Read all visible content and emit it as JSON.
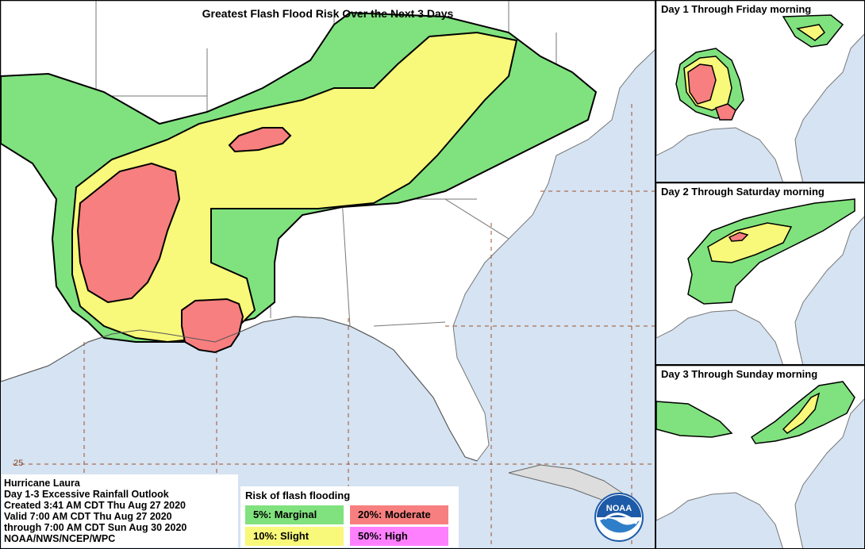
{
  "main_map": {
    "title": "Greatest Flash Flood Risk Over the Next 3 Days",
    "lat_label": "25"
  },
  "insets": [
    {
      "title": "Day 1 Through Friday morning"
    },
    {
      "title": "Day 2 Through Saturday morning"
    },
    {
      "title": "Day 3 Through Sunday morning"
    }
  ],
  "info": {
    "lines": [
      "Hurricane Laura",
      "Day 1-3 Excessive Rainfall Outlook",
      "Created 3:41 AM CDT Thu Aug 27 2020",
      "Valid 7:00 AM CDT Thu Aug 27 2020",
      "through 7:00 AM CDT Sun Aug 30 2020",
      "NOAA/NWS/NCEP/WPC"
    ]
  },
  "legend": {
    "title": "Risk of flash flooding",
    "marginal": "5%: Marginal",
    "slight": "10%: Slight",
    "moderate": "20%: Moderate",
    "high": "50%: High"
  },
  "logo_text": "NOAA",
  "colors": {
    "marginal": "#80e27e",
    "slight": "#f8f87a",
    "moderate": "#f87f7f",
    "high": "#ff80ff",
    "water": "#d5e3f2",
    "land": "#ffffff",
    "border": "#000000"
  }
}
